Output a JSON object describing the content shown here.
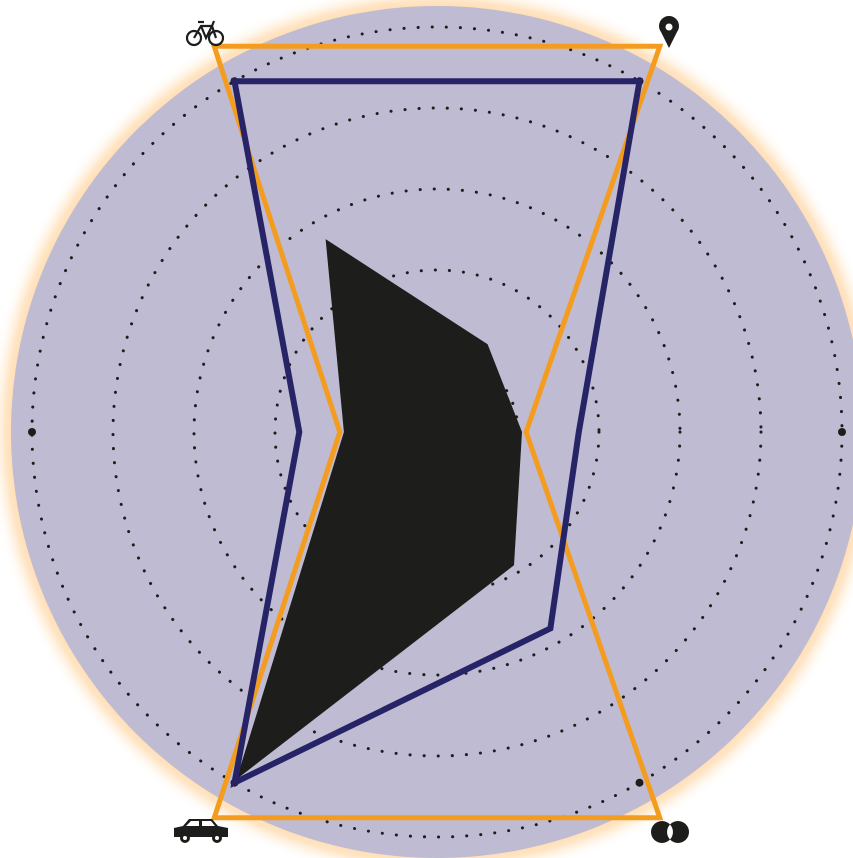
{
  "chart_data": {
    "type": "radar",
    "title": "",
    "axes": [
      {
        "icon": "map-pin-icon"
      },
      {
        "icon": "dot"
      },
      {
        "icon": "overlap-circles-icon"
      },
      {
        "icon": "car-icon"
      },
      {
        "icon": "dot"
      },
      {
        "icon": "bicycle-icon"
      }
    ],
    "rings": [
      0.2,
      0.4,
      0.6,
      0.8,
      1.0
    ],
    "series": [
      {
        "color": "#1d1d1b",
        "style": "fill",
        "values": [
          0.25,
          0.21,
          0.38,
          0.99,
          0.23,
          0.55
        ]
      },
      {
        "color": "#f39c1f",
        "style": "outline",
        "values": [
          1.1,
          0.22,
          1.1,
          1.1,
          0.24,
          1.1
        ]
      },
      {
        "color": "#262466",
        "style": "outline",
        "values": [
          1.0,
          0.35,
          0.56,
          1.0,
          0.34,
          1.0
        ]
      }
    ],
    "background": "#bfbbd3",
    "glow": "#ffb65a",
    "grid": "dotted"
  }
}
